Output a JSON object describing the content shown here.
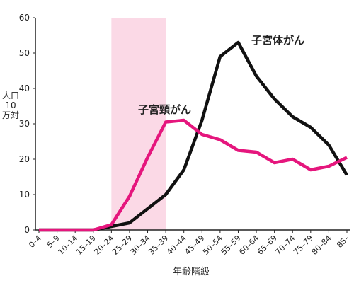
{
  "chart_data": {
    "type": "line",
    "y_label": "人口10万対",
    "x_label": "年齢階級",
    "categories": [
      "0–4",
      "5–9",
      "10–14",
      "15–19",
      "20–24",
      "25–29",
      "30–34",
      "35–39",
      "40–44",
      "45–49",
      "50–54",
      "55–59",
      "60–64",
      "65–69",
      "70–74",
      "75–79",
      "80–84",
      "85–"
    ],
    "series": [
      {
        "name": "子宮体がん",
        "color": "#111111",
        "values": [
          0,
          0,
          0,
          0,
          1,
          2,
          6,
          10,
          17,
          31,
          49,
          53,
          43.5,
          37,
          32,
          29,
          24,
          15.5
        ]
      },
      {
        "name": "子宮頸がん",
        "color": "#e5167d",
        "values": [
          0,
          0,
          0,
          0,
          1.5,
          9.5,
          20.5,
          30.5,
          31,
          27,
          25.5,
          22.5,
          22,
          19,
          20,
          17,
          18,
          20.5
        ]
      }
    ],
    "ylim": [
      0,
      60
    ],
    "yticks": [
      0,
      10,
      20,
      30,
      40,
      50,
      60
    ]
  }
}
